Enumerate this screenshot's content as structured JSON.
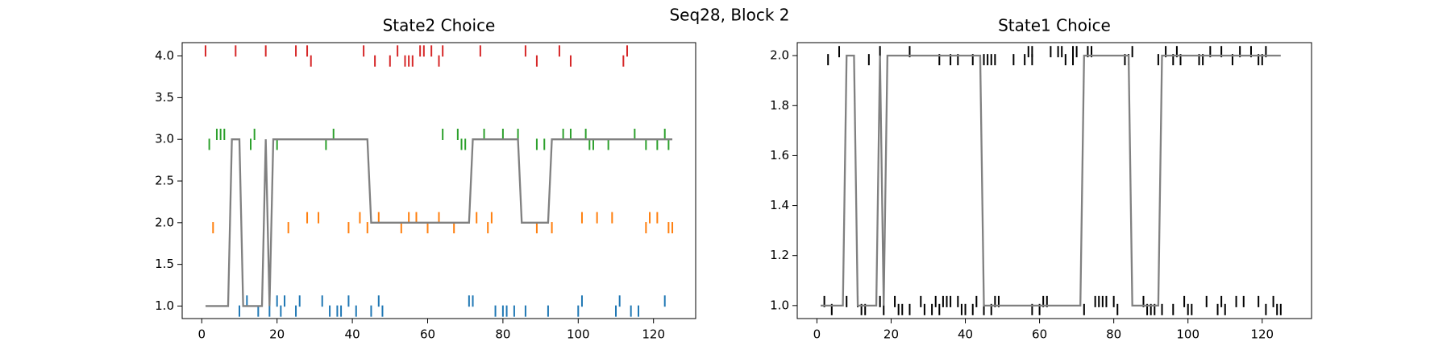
{
  "title": "Seq28, Block 2",
  "chart_data": [
    {
      "type": "line",
      "title": "State2 Choice",
      "xlim": [
        -5.2,
        131.2
      ],
      "ylim": [
        0.85,
        4.16
      ],
      "xticks": [
        0,
        20,
        40,
        60,
        80,
        100,
        120
      ],
      "yticks": [
        {
          "value": 1,
          "label": "1.0"
        },
        {
          "value": 1.5,
          "label": "1.5"
        },
        {
          "value": 2,
          "label": "2.0"
        },
        {
          "value": 2.5,
          "label": "2.5"
        },
        {
          "value": 3,
          "label": "3.0"
        },
        {
          "value": 3.5,
          "label": "3.5"
        },
        {
          "value": 4,
          "label": "4.0"
        }
      ],
      "series": [
        {
          "color": "#d62728",
          "marker": "|",
          "x": [
            1,
            9,
            17,
            25,
            28,
            43,
            52,
            58,
            59,
            61,
            64,
            74,
            86,
            95,
            113
          ],
          "values": [
            4.06,
            4.06,
            4.06,
            4.06,
            4.06,
            4.06,
            4.06,
            4.06,
            4.06,
            4.06,
            4.06,
            4.06,
            4.06,
            4.06,
            4.06
          ]
        },
        {
          "color": "#d62728",
          "marker": "|",
          "x": [
            29,
            46,
            50,
            54,
            55,
            56,
            63,
            89,
            98,
            112
          ],
          "values": [
            3.94,
            3.94,
            3.94,
            3.94,
            3.94,
            3.94,
            3.94,
            3.94,
            3.94,
            3.94
          ]
        },
        {
          "color": "#2ca02c",
          "marker": "|",
          "x": [
            4,
            5,
            6,
            14,
            35,
            64,
            68,
            75,
            80,
            84,
            96,
            98,
            102,
            115,
            123
          ],
          "values": [
            3.06,
            3.06,
            3.06,
            3.06,
            3.06,
            3.06,
            3.06,
            3.06,
            3.06,
            3.06,
            3.06,
            3.06,
            3.06,
            3.06,
            3.06
          ]
        },
        {
          "color": "#2ca02c",
          "marker": "|",
          "x": [
            2,
            13,
            20,
            33,
            69,
            70,
            89,
            91,
            103,
            104,
            108,
            118,
            121,
            124
          ],
          "values": [
            2.94,
            2.94,
            2.94,
            2.94,
            2.94,
            2.94,
            2.94,
            2.94,
            2.94,
            2.94,
            2.94,
            2.94,
            2.94,
            2.94
          ]
        },
        {
          "color": "#ff7f0e",
          "marker": "|",
          "x": [
            28,
            31,
            42,
            47,
            55,
            57,
            63,
            73,
            77,
            101,
            105,
            109,
            119,
            121
          ],
          "values": [
            2.06,
            2.06,
            2.06,
            2.06,
            2.06,
            2.06,
            2.06,
            2.06,
            2.06,
            2.06,
            2.06,
            2.06,
            2.06,
            2.06
          ]
        },
        {
          "color": "#ff7f0e",
          "marker": "|",
          "x": [
            3,
            23,
            39,
            44,
            53,
            60,
            67,
            76,
            89,
            93,
            118,
            124,
            125
          ],
          "values": [
            1.94,
            1.94,
            1.94,
            1.94,
            1.94,
            1.94,
            1.94,
            1.94,
            1.94,
            1.94,
            1.94,
            1.94,
            1.94
          ]
        },
        {
          "color": "#1f77b4",
          "marker": "|",
          "x": [
            12,
            20,
            22,
            26,
            32,
            39,
            47,
            71,
            72,
            101,
            111,
            123
          ],
          "values": [
            1.06,
            1.06,
            1.06,
            1.06,
            1.06,
            1.06,
            1.06,
            1.06,
            1.06,
            1.06,
            1.06,
            1.06
          ]
        },
        {
          "color": "#1f77b4",
          "marker": "|",
          "x": [
            10,
            15,
            18,
            21,
            25,
            34,
            36,
            37,
            41,
            45,
            48,
            78,
            80,
            81,
            83,
            86,
            92,
            100,
            110,
            114,
            116
          ],
          "values": [
            0.94,
            0.94,
            0.94,
            0.94,
            0.94,
            0.94,
            0.94,
            0.94,
            0.94,
            0.94,
            0.94,
            0.94,
            0.94,
            0.94,
            0.94,
            0.94,
            0.94,
            0.94,
            0.94,
            0.94,
            0.94
          ]
        },
        {
          "color": "#808080",
          "x": [
            1,
            7,
            8,
            10,
            11,
            16,
            17,
            18,
            19,
            44,
            45,
            71,
            72,
            84,
            85,
            92,
            93,
            125
          ],
          "values": [
            1,
            1,
            3,
            3,
            1,
            1,
            3,
            1,
            3,
            3,
            2,
            2,
            3,
            3,
            2,
            2,
            3,
            3
          ]
        }
      ]
    },
    {
      "type": "line",
      "title": "State1 Choice",
      "xlim": [
        -5.3,
        133.3
      ],
      "ylim": [
        0.948,
        2.052
      ],
      "xticks": [
        0,
        20,
        40,
        60,
        80,
        100,
        120
      ],
      "yticks": [
        {
          "value": 1,
          "label": "1.0"
        },
        {
          "value": 1.2,
          "label": "1.2"
        },
        {
          "value": 1.4,
          "label": "1.4"
        },
        {
          "value": 1.6,
          "label": "1.6"
        },
        {
          "value": 1.8,
          "label": "1.8"
        },
        {
          "value": 2,
          "label": "2.0"
        }
      ],
      "series": [
        {
          "color": "#000000",
          "marker": "|",
          "x": [
            6,
            17,
            25,
            57,
            58,
            63,
            65,
            66,
            69,
            70,
            73,
            74,
            85,
            94,
            97,
            106,
            109,
            114,
            117,
            121
          ],
          "values": [
            2.016,
            2.016,
            2.016,
            2.016,
            2.016,
            2.016,
            2.016,
            2.016,
            2.016,
            2.016,
            2.016,
            2.016,
            2.016,
            2.016,
            2.016,
            2.016,
            2.016,
            2.016,
            2.016,
            2.016
          ]
        },
        {
          "color": "#000000",
          "marker": "|",
          "x": [
            3,
            14,
            33,
            36,
            38,
            42,
            45,
            46,
            47,
            48,
            53,
            56,
            58,
            67,
            69,
            83,
            84,
            92,
            96,
            98,
            103,
            104,
            112,
            119,
            120
          ],
          "values": [
            1.984,
            1.984,
            1.984,
            1.984,
            1.984,
            1.984,
            1.984,
            1.984,
            1.984,
            1.984,
            1.984,
            1.984,
            1.984,
            1.984,
            1.984,
            1.984,
            1.984,
            1.984,
            1.984,
            1.984,
            1.984,
            1.984,
            1.984,
            1.984,
            1.984
          ]
        },
        {
          "color": "#000000",
          "marker": "|",
          "x": [
            2,
            8,
            11,
            17,
            21,
            28,
            32,
            34,
            35,
            36,
            38,
            43,
            48,
            49,
            61,
            62,
            75,
            76,
            77,
            78,
            80,
            88,
            99,
            105,
            109,
            113,
            115,
            119,
            123
          ],
          "values": [
            1.016,
            1.016,
            1.016,
            1.016,
            1.016,
            1.016,
            1.016,
            1.016,
            1.016,
            1.016,
            1.016,
            1.016,
            1.016,
            1.016,
            1.016,
            1.016,
            1.016,
            1.016,
            1.016,
            1.016,
            1.016,
            1.016,
            1.016,
            1.016,
            1.016,
            1.016,
            1.016,
            1.016,
            1.016
          ]
        },
        {
          "color": "#000000",
          "marker": "|",
          "x": [
            4,
            12,
            13,
            18,
            22,
            23,
            25,
            29,
            31,
            33,
            39,
            40,
            42,
            45,
            47,
            58,
            60,
            72,
            81,
            89,
            90,
            91,
            93,
            96,
            100,
            101,
            108,
            110,
            121,
            124,
            125
          ],
          "values": [
            0.984,
            0.984,
            0.984,
            0.984,
            0.984,
            0.984,
            0.984,
            0.984,
            0.984,
            0.984,
            0.984,
            0.984,
            0.984,
            0.984,
            0.984,
            0.984,
            0.984,
            0.984,
            0.984,
            0.984,
            0.984,
            0.984,
            0.984,
            0.984,
            0.984,
            0.984,
            0.984,
            0.984,
            0.984,
            0.984,
            0.984
          ]
        },
        {
          "color": "#808080",
          "x": [
            1,
            7,
            8,
            10,
            11,
            16,
            17,
            18,
            19,
            44,
            45,
            71,
            72,
            84,
            85,
            92,
            93,
            125
          ],
          "values": [
            1,
            1,
            2,
            2,
            1,
            1,
            2,
            1,
            2,
            2,
            1,
            1,
            2,
            2,
            1,
            1,
            2,
            2
          ]
        }
      ]
    }
  ]
}
